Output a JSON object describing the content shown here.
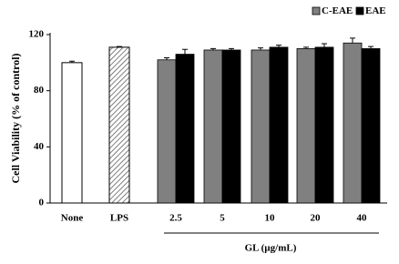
{
  "chart_data": {
    "type": "bar",
    "y_label": "Cell Viability (% of control)",
    "x_label": "GL (µg/mL)",
    "categories": [
      "None",
      "LPS",
      "2.5",
      "5",
      "10",
      "20",
      "40"
    ],
    "controls": [
      {
        "value": 100,
        "error": 1
      },
      {
        "value": 111,
        "error": 0.5
      }
    ],
    "series": [
      {
        "name": "C-EAE",
        "color": "#808080",
        "values": [
          null,
          null,
          102,
          109,
          109,
          110,
          114
        ],
        "errors": [
          null,
          null,
          1.5,
          1,
          1.5,
          1,
          3.5
        ]
      },
      {
        "name": "EAE",
        "color": "#000000",
        "values": [
          null,
          null,
          106,
          109,
          111,
          111,
          110
        ],
        "errors": [
          null,
          null,
          3.5,
          1,
          1.5,
          2.5,
          1.5
        ]
      }
    ],
    "ylim": [
      0,
      120
    ],
    "yticks": [
      0,
      40,
      80,
      120
    ]
  }
}
